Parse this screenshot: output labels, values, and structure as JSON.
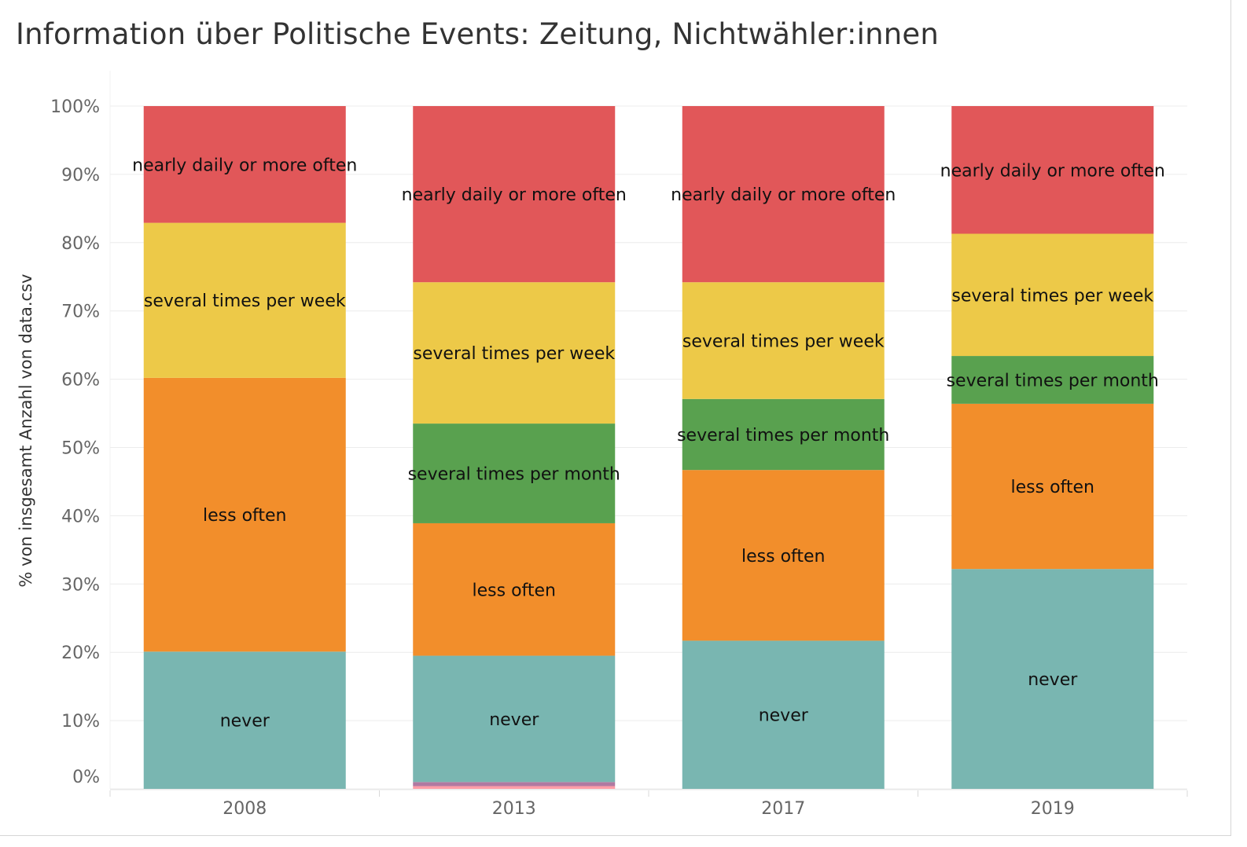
{
  "title": "Information über Politische Events: Zeitung, Nichtwähler:innen",
  "chart_data": {
    "type": "bar",
    "stacked": true,
    "title": "Information über Politische Events: Zeitung, Nichtwähler:innen",
    "xlabel": "",
    "ylabel": "% von insgesamt Anzahl von data.csv",
    "ylim": [
      0,
      100
    ],
    "y_ticks": [
      "0%",
      "10%",
      "20%",
      "30%",
      "40%",
      "50%",
      "60%",
      "70%",
      "80%",
      "90%",
      "100%"
    ],
    "grid": true,
    "categories": [
      "2008",
      "2013",
      "2017",
      "2019"
    ],
    "series": [
      {
        "name": "other (pink)",
        "show_label": false,
        "color": "#FF9DA7",
        "values": [
          0,
          0.4,
          0,
          0
        ]
      },
      {
        "name": "other (purple)",
        "show_label": false,
        "color": "#B07AA1",
        "values": [
          0,
          0.6,
          0,
          0
        ]
      },
      {
        "name": "never",
        "show_label": true,
        "color": "#79B6B1",
        "values": [
          20.1,
          18.5,
          21.7,
          32.2
        ]
      },
      {
        "name": "less often",
        "show_label": true,
        "color": "#F28E2B",
        "values": [
          40.1,
          19.4,
          25.0,
          24.2
        ]
      },
      {
        "name": "several times per month",
        "show_label": true,
        "color": "#59A14F",
        "values": [
          0,
          14.6,
          10.4,
          7.0
        ]
      },
      {
        "name": "several times per week",
        "show_label": true,
        "color": "#EDC948",
        "values": [
          22.7,
          20.7,
          17.1,
          17.9
        ]
      },
      {
        "name": "nearly daily or more often",
        "show_label": true,
        "color": "#E15759",
        "values": [
          17.1,
          25.8,
          25.8,
          18.7
        ]
      }
    ]
  }
}
